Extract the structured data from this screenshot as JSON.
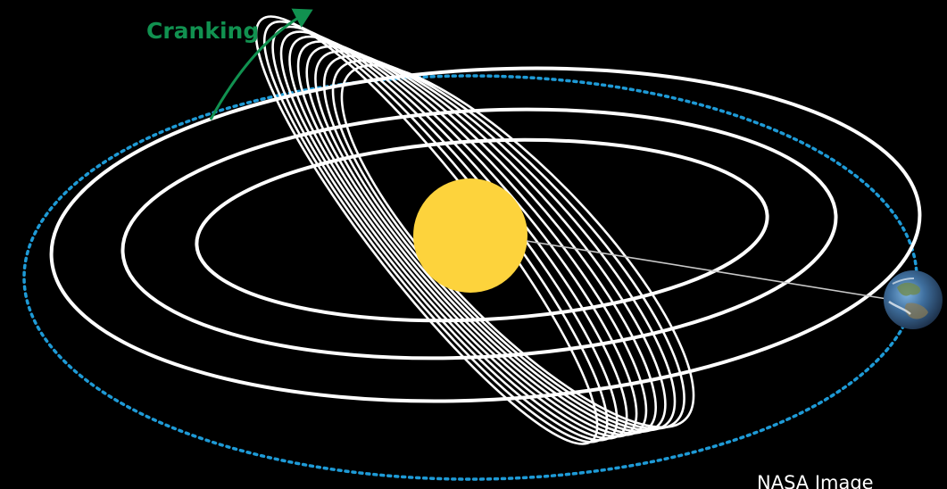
{
  "diagram": {
    "cranking_label": "Cranking",
    "credit_label": "NASA Image",
    "colors": {
      "background": "#000000",
      "orbit_stroke": "#ffffff",
      "earth_orbit": "#1e9ad6",
      "sun": "#fdd33c",
      "cranking_arrow": "#119150",
      "earth_line": "#c8c8c8",
      "credit_text": "#ffffff"
    },
    "icons": {
      "sun": "sun-icon",
      "earth": "earth-icon",
      "arrow": "cranking-arrow-icon"
    }
  }
}
